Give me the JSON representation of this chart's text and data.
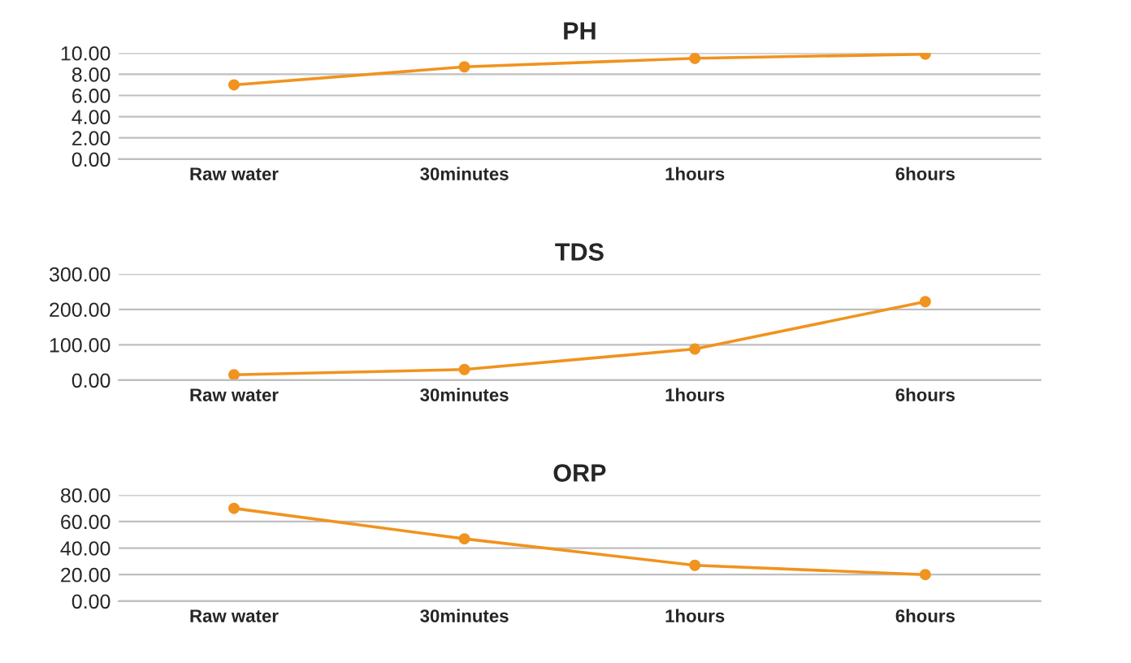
{
  "chart_data": [
    {
      "type": "line",
      "title": "PH",
      "categories": [
        "Raw water",
        "30minutes",
        "1hours",
        "6hours"
      ],
      "ylim": [
        0,
        10
      ],
      "yticks": [
        {
          "value": 0,
          "label": "0.00"
        },
        {
          "value": 2,
          "label": "2.00"
        },
        {
          "value": 4,
          "label": "4.00"
        },
        {
          "value": 6,
          "label": "6.00"
        },
        {
          "value": 8,
          "label": "8.00"
        },
        {
          "value": 10,
          "label": "10.00"
        }
      ],
      "grid": "y",
      "marker": "circle",
      "line_style": "solid",
      "series": [
        {
          "color": "#f0931f",
          "values": [
            7.0,
            8.7,
            9.5,
            9.9
          ]
        }
      ]
    },
    {
      "type": "line",
      "title": "TDS",
      "categories": [
        "Raw water",
        "30minutes",
        "1hours",
        "6hours"
      ],
      "ylim": [
        0,
        300
      ],
      "yticks": [
        {
          "value": 0,
          "label": "0.00"
        },
        {
          "value": 100,
          "label": "100.00"
        },
        {
          "value": 200,
          "label": "200.00"
        },
        {
          "value": 300,
          "label": "300.00"
        }
      ],
      "grid": "y",
      "marker": "circle",
      "line_style": "solid",
      "series": [
        {
          "color": "#f0931f",
          "values": [
            15,
            30,
            88,
            222
          ]
        }
      ]
    },
    {
      "type": "line",
      "title": "ORP",
      "categories": [
        "Raw water",
        "30minutes",
        "1hours",
        "6hours"
      ],
      "ylim": [
        0,
        80
      ],
      "yticks": [
        {
          "value": 0,
          "label": "0.00"
        },
        {
          "value": 20,
          "label": "20.00"
        },
        {
          "value": 40,
          "label": "40.00"
        },
        {
          "value": 60,
          "label": "60.00"
        },
        {
          "value": 80,
          "label": "80.00"
        }
      ],
      "grid": "y",
      "marker": "circle",
      "line_style": "solid",
      "series": [
        {
          "color": "#f0931f",
          "values": [
            70,
            47,
            27,
            20
          ]
        }
      ]
    }
  ]
}
